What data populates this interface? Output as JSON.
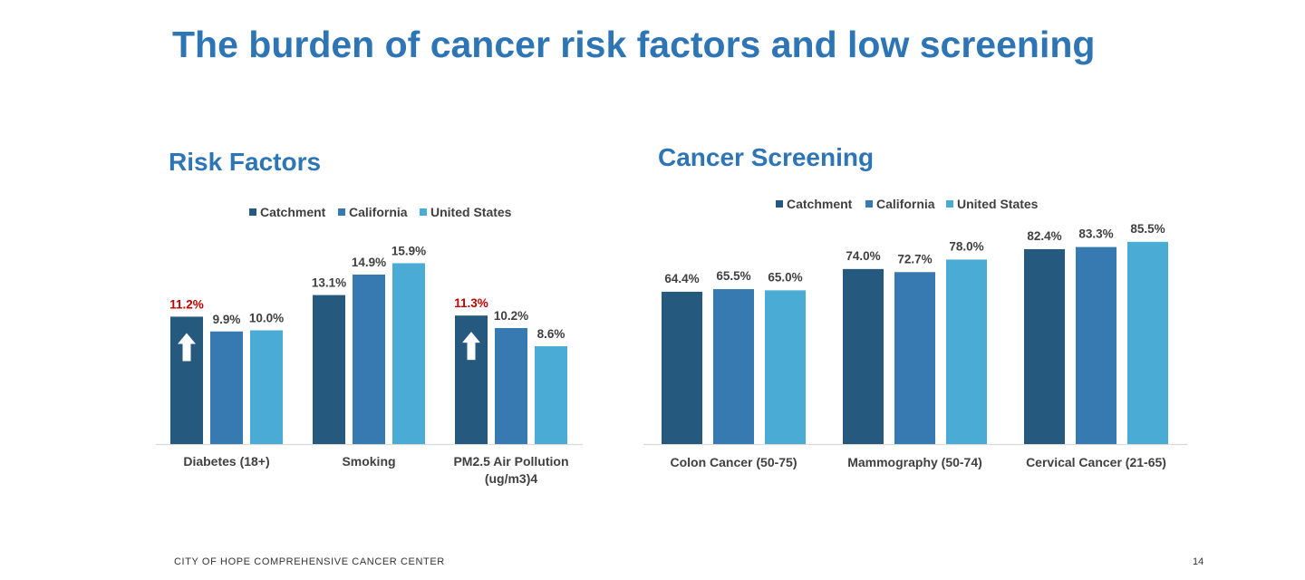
{
  "slide_title": "The burden of cancer risk factors and low screening",
  "footer": "CITY OF HOPE COMPREHENSIVE CANCER CENTER",
  "page_number": "14",
  "colors": {
    "title": "#2e75b6",
    "series": [
      "#255a7e",
      "#367ab1",
      "#4aacd4"
    ],
    "highlight": "#c00000",
    "text": "#404040",
    "axis": "#d9d9d9"
  },
  "chart_data": [
    {
      "type": "bar",
      "title": "Risk Factors",
      "categories": [
        "Diabetes (18+)",
        "Smoking",
        "PM2.5 Air Pollution (ug/m3)4"
      ],
      "category_lines": [
        [
          "Diabetes (18+)"
        ],
        [
          "Smoking"
        ],
        [
          "PM2.5 Air Pollution",
          "(ug/m3)4"
        ]
      ],
      "series": [
        {
          "name": "Catchment",
          "values": [
            11.2,
            13.1,
            11.3
          ],
          "labels": [
            "11.2%",
            "13.1%",
            "11.3%"
          ]
        },
        {
          "name": "California",
          "values": [
            9.9,
            14.9,
            10.2
          ],
          "labels": [
            "9.9%",
            "14.9%",
            "10.2%"
          ]
        },
        {
          "name": "United States",
          "values": [
            10.0,
            15.9,
            8.6
          ],
          "labels": [
            "10.0%",
            "15.9%",
            "8.6%"
          ]
        }
      ],
      "highlights": [
        {
          "series": 0,
          "category": 0,
          "label_color": "red",
          "arrow": "up"
        },
        {
          "series": 0,
          "category": 2,
          "label_color": "red",
          "arrow": "up"
        }
      ],
      "ylim": [
        0,
        16
      ],
      "legend": "top",
      "grid": false
    },
    {
      "type": "bar",
      "title": "Cancer Screening",
      "categories": [
        "Colon Cancer (50-75)",
        "Mammography (50-74)",
        "Cervical Cancer (21-65)"
      ],
      "category_lines": [
        [
          "Colon Cancer (50-75)"
        ],
        [
          "Mammography (50-74)"
        ],
        [
          "Cervical Cancer (21-65)"
        ]
      ],
      "series": [
        {
          "name": "Catchment",
          "values": [
            64.4,
            74.0,
            82.4
          ],
          "labels": [
            "64.4%",
            "74.0%",
            "82.4%"
          ]
        },
        {
          "name": "California",
          "values": [
            65.5,
            72.7,
            83.3
          ],
          "labels": [
            "65.5%",
            "72.7%",
            "83.3%"
          ]
        },
        {
          "name": "United States",
          "values": [
            65.0,
            78.0,
            85.5
          ],
          "labels": [
            "65.0%",
            "78.0%",
            "85.5%"
          ]
        }
      ],
      "highlights": [],
      "ylim": [
        0,
        86
      ],
      "legend": "top",
      "grid": false
    }
  ]
}
